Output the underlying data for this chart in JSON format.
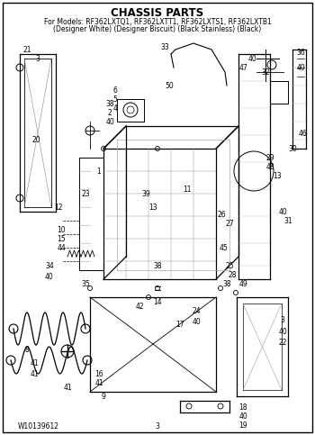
{
  "title": "CHASSIS PARTS",
  "subtitle_line1": "For Models: RF362LXTQ1, RF362LXTT1, RF362LXTS1, RF362LXTB1",
  "subtitle_line2": "(Designer White) (Designer Biscuit) (Black Stainless) (Black)",
  "footer_left": "W10139612",
  "footer_center": "3",
  "bg_color": "#ffffff",
  "title_fontsize": 8.5,
  "subtitle_fontsize": 5.5,
  "footer_fontsize": 5.5,
  "fig_width": 3.5,
  "fig_height": 4.83,
  "dpi": 100
}
